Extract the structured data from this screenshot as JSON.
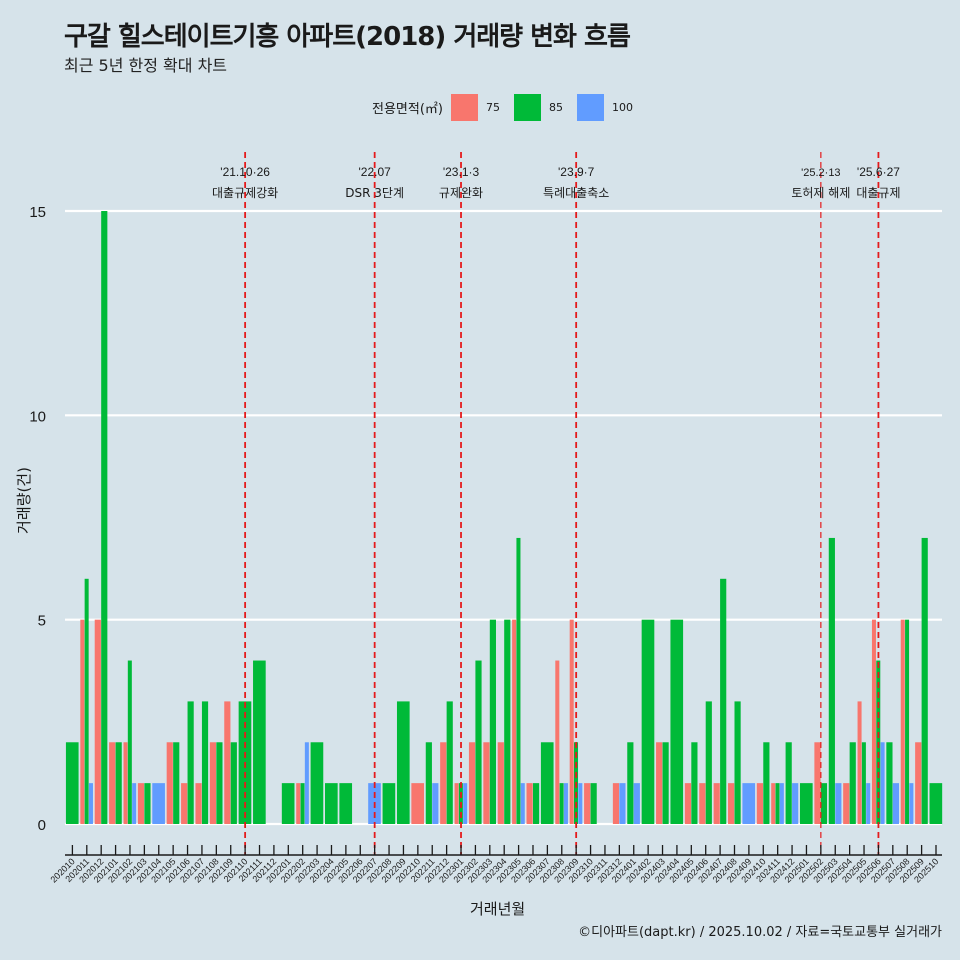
{
  "header": {
    "title": "구갈 힐스테이트기흥 아파트(2018) 거래량 변화 흐름",
    "subtitle": "최근 5년 한정 확대 차트"
  },
  "legend": {
    "title": "전용면적(㎡)",
    "items": [
      {
        "label": "75",
        "color": "#F8766D"
      },
      {
        "label": "85",
        "color": "#00BA38"
      },
      {
        "label": "100",
        "color": "#619CFF"
      }
    ]
  },
  "caption": "©디아파트(dapt.kr) / 2025.10.02 / 자료=국토교통부 실거래가",
  "chart_data": {
    "type": "bar",
    "title": "구갈 힐스테이트기흥 아파트(2018) 거래량 변화 흐름",
    "subtitle": "최근 5년 한정 확대 차트",
    "xlabel": "거래년월",
    "ylabel": "거래량(건)",
    "ylim": [
      0,
      15
    ],
    "yticks": [
      "0",
      "5",
      "10",
      "15"
    ],
    "grid": true,
    "legend_position": "top",
    "categories": [
      "202010",
      "202011",
      "202012",
      "202101",
      "202102",
      "202103",
      "202104",
      "202105",
      "202106",
      "202107",
      "202108",
      "202109",
      "202110",
      "202111",
      "202112",
      "202201",
      "202202",
      "202203",
      "202204",
      "202205",
      "202206",
      "202207",
      "202208",
      "202209",
      "202210",
      "202211",
      "202212",
      "202301",
      "202302",
      "202303",
      "202304",
      "202305",
      "202306",
      "202307",
      "202308",
      "202309",
      "202310",
      "202311",
      "202312",
      "202401",
      "202402",
      "202403",
      "202404",
      "202405",
      "202406",
      "202407",
      "202408",
      "202409",
      "202410",
      "202411",
      "202412",
      "202501",
      "202502",
      "202503",
      "202504",
      "202505",
      "202506",
      "202507",
      "202508",
      "202509",
      "202510"
    ],
    "series": [
      {
        "name": "75",
        "color": "#F8766D",
        "values": [
          0,
          5,
          5,
          2,
          2,
          1,
          0,
          2,
          1,
          1,
          2,
          3,
          0,
          0,
          0,
          0,
          1,
          0,
          0,
          0,
          0,
          0,
          0,
          0,
          1,
          0,
          2,
          1,
          2,
          2,
          2,
          5,
          1,
          0,
          4,
          5,
          1,
          0,
          1,
          0,
          0,
          2,
          0,
          1,
          1,
          1,
          1,
          0,
          1,
          1,
          0,
          0,
          2,
          0,
          1,
          3,
          5,
          0,
          5,
          2,
          0
        ]
      },
      {
        "name": "85",
        "color": "#00BA38",
        "values": [
          2,
          6,
          15,
          2,
          4,
          1,
          0,
          2,
          3,
          3,
          2,
          2,
          3,
          4,
          0,
          1,
          1,
          2,
          1,
          1,
          0,
          0,
          1,
          3,
          0,
          2,
          3,
          1,
          4,
          5,
          5,
          7,
          1,
          2,
          1,
          2,
          1,
          0,
          0,
          2,
          5,
          2,
          5,
          2,
          3,
          6,
          3,
          0,
          2,
          1,
          2,
          1,
          1,
          7,
          2,
          2,
          4,
          2,
          5,
          7,
          1
        ]
      },
      {
        "name": "100",
        "color": "#619CFF",
        "values": [
          0,
          1,
          0,
          0,
          1,
          0,
          1,
          0,
          0,
          0,
          0,
          0,
          0,
          0,
          0,
          0,
          2,
          0,
          0,
          0,
          0,
          1,
          0,
          0,
          0,
          1,
          0,
          1,
          0,
          0,
          0,
          1,
          0,
          0,
          1,
          1,
          0,
          0,
          1,
          1,
          0,
          0,
          0,
          0,
          0,
          0,
          0,
          1,
          0,
          1,
          1,
          0,
          0,
          1,
          0,
          1,
          2,
          1,
          1,
          0,
          0
        ]
      }
    ],
    "annotations": [
      {
        "x": "202110",
        "date": "'21.10·26",
        "label": "대출규제강화"
      },
      {
        "x": "202207",
        "date": "'22.07",
        "label": "DSR 3단계"
      },
      {
        "x": "202301",
        "date": "'23.1·3",
        "label": "규제완화"
      },
      {
        "x": "202309",
        "date": "'23.9·7",
        "label": "특례대출축소"
      },
      {
        "x": "202502",
        "date": "'25.2·13",
        "label": "토허제 해제"
      },
      {
        "x": "202506",
        "date": "'25.6·27",
        "label": "대출규제"
      }
    ],
    "annotation_color": "#E41A1C"
  }
}
